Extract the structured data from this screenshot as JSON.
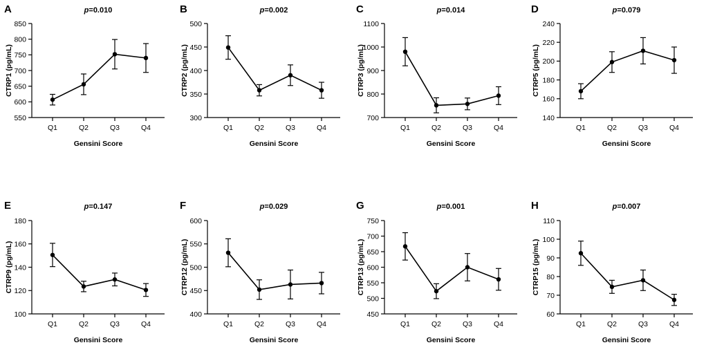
{
  "chart_data": [
    {
      "type": "line",
      "panel": "A",
      "pvalue": "0.010",
      "ylabel": "CTRP1 (pg/mL)",
      "xlabel": "Gensini Score",
      "categories": [
        "Q1",
        "Q2",
        "Q3",
        "Q4"
      ],
      "values": [
        607,
        656,
        752,
        740
      ],
      "err_low": [
        590,
        623,
        705,
        694
      ],
      "err_high": [
        624,
        689,
        799,
        786
      ],
      "ylim": [
        550,
        850
      ],
      "yticks": [
        550,
        600,
        650,
        700,
        750,
        800,
        850
      ]
    },
    {
      "type": "line",
      "panel": "B",
      "pvalue": "0.002",
      "ylabel": "CTRP2 (pg/mL)",
      "xlabel": "Gensini Score",
      "categories": [
        "Q1",
        "Q2",
        "Q3",
        "Q4"
      ],
      "values": [
        449,
        358,
        390,
        358
      ],
      "err_low": [
        424,
        346,
        368,
        341
      ],
      "err_high": [
        474,
        370,
        412,
        375
      ],
      "ylim": [
        300,
        500
      ],
      "yticks": [
        300,
        350,
        400,
        450,
        500
      ]
    },
    {
      "type": "line",
      "panel": "C",
      "pvalue": "0.014",
      "ylabel": "CTRP3 (pg/mL)",
      "xlabel": "Gensini Score",
      "categories": [
        "Q1",
        "Q2",
        "Q3",
        "Q4"
      ],
      "values": [
        980,
        752,
        758,
        793
      ],
      "err_low": [
        920,
        720,
        733,
        755
      ],
      "err_high": [
        1040,
        784,
        783,
        831
      ],
      "ylim": [
        700,
        1100
      ],
      "yticks": [
        700,
        800,
        900,
        1000,
        1100
      ]
    },
    {
      "type": "line",
      "panel": "D",
      "pvalue": "0.079",
      "ylabel": "CTRP5 (pg/mL)",
      "xlabel": "Gensini Score",
      "categories": [
        "Q1",
        "Q2",
        "Q3",
        "Q4"
      ],
      "values": [
        168,
        199,
        211,
        201
      ],
      "err_low": [
        160,
        188,
        197,
        187
      ],
      "err_high": [
        176,
        210,
        225,
        215
      ],
      "ylim": [
        140,
        240
      ],
      "yticks": [
        140,
        160,
        180,
        200,
        220,
        240
      ]
    },
    {
      "type": "line",
      "panel": "E",
      "pvalue": "0.147",
      "ylabel": "CTRP9 (pg/mL)",
      "xlabel": "Gensini Score",
      "categories": [
        "Q1",
        "Q2",
        "Q3",
        "Q4"
      ],
      "values": [
        150.5,
        123.5,
        129.5,
        120.5
      ],
      "err_low": [
        140.5,
        119,
        124,
        115
      ],
      "err_high": [
        160.5,
        128,
        135,
        126
      ],
      "ylim": [
        100,
        180
      ],
      "yticks": [
        100,
        120,
        140,
        160,
        180
      ]
    },
    {
      "type": "line",
      "panel": "F",
      "pvalue": "0.029",
      "ylabel": "CTRP12 (pg/mL)",
      "xlabel": "Gensini Score",
      "categories": [
        "Q1",
        "Q2",
        "Q3",
        "Q4"
      ],
      "values": [
        531,
        452,
        463,
        466
      ],
      "err_low": [
        501,
        431,
        432,
        443
      ],
      "err_high": [
        561,
        473,
        494,
        489
      ],
      "ylim": [
        400,
        600
      ],
      "yticks": [
        400,
        450,
        500,
        550,
        600
      ]
    },
    {
      "type": "line",
      "panel": "G",
      "pvalue": "0.001",
      "ylabel": "CTRP13 (pg/mL)",
      "xlabel": "Gensini Score",
      "categories": [
        "Q1",
        "Q2",
        "Q3",
        "Q4"
      ],
      "values": [
        667,
        523,
        600,
        561
      ],
      "err_low": [
        623,
        499,
        556,
        526
      ],
      "err_high": [
        711,
        547,
        644,
        596
      ],
      "ylim": [
        450,
        750
      ],
      "yticks": [
        450,
        500,
        550,
        600,
        650,
        700,
        750
      ]
    },
    {
      "type": "line",
      "panel": "H",
      "pvalue": "0.007",
      "ylabel": "CTRP15 (pg/mL)",
      "xlabel": "Gensini Score",
      "categories": [
        "Q1",
        "Q2",
        "Q3",
        "Q4"
      ],
      "values": [
        92.5,
        74.5,
        78,
        67.5
      ],
      "err_low": [
        86,
        71,
        72.5,
        64.5
      ],
      "err_high": [
        99,
        78,
        83.5,
        70.5
      ],
      "ylim": [
        60,
        110
      ],
      "yticks": [
        60,
        70,
        80,
        90,
        100,
        110
      ]
    }
  ]
}
